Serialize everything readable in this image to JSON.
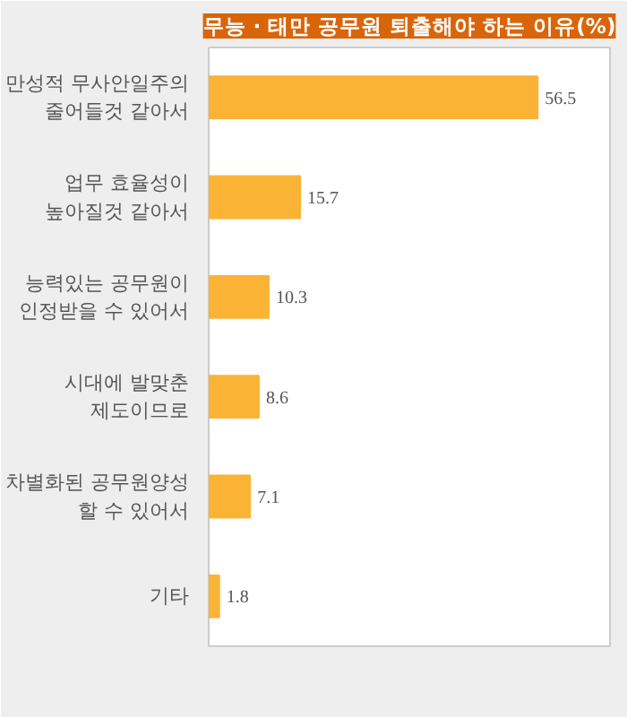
{
  "chart_data": {
    "type": "bar",
    "orientation": "horizontal",
    "title": "무능 · 태만 공무원 퇴출해야 하는 이유(%)",
    "categories": [
      "만성적 무사안일주의\n줄어들것 같아서",
      "업무 효율성이\n높아질것 같아서",
      "능력있는 공무원이\n인정받을 수 있어서",
      "시대에 발맞춘\n제도이므로",
      "차별화된 공무원양성\n할 수 있어서",
      "기타"
    ],
    "values": [
      56.5,
      15.7,
      10.3,
      8.6,
      7.1,
      1.8
    ],
    "color": "#fbb336",
    "data_labels": true,
    "grid": false
  }
}
